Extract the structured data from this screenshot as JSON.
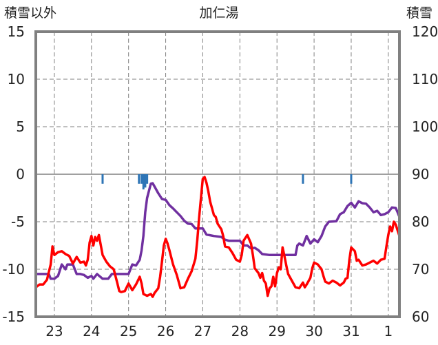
{
  "chart_data": {
    "type": "line",
    "title": "加仁湯",
    "left_axis_label": "積雪以外",
    "right_axis_label": "積雪",
    "x_ticks": [
      "23",
      "24",
      "25",
      "26",
      "27",
      "28",
      "29",
      "30",
      "31",
      "1"
    ],
    "x_range_days": [
      22.5,
      32.3
    ],
    "y_left_ticks": [
      "15",
      "10",
      "5",
      "0",
      "-5",
      "-10",
      "-15"
    ],
    "y_left_range": [
      -15,
      15
    ],
    "y_right_ticks": [
      "120",
      "110",
      "100",
      "90",
      "80",
      "70",
      "60"
    ],
    "y_right_range": [
      60,
      120
    ],
    "grid": true,
    "colors": {
      "temperature": "#ff0000",
      "snow_depth": "#7030a0",
      "precipitation": "#2e75b6",
      "frame": "#808080",
      "grid": "#808080"
    },
    "series": [
      {
        "key": "temperature",
        "axis": "left",
        "points": [
          [
            22.5,
            -11.9
          ],
          [
            22.6,
            -11.6
          ],
          [
            22.7,
            -11.6
          ],
          [
            22.8,
            -11.1
          ],
          [
            22.9,
            -9.5
          ],
          [
            22.95,
            -7.6
          ],
          [
            23.0,
            -8.5
          ],
          [
            23.1,
            -8.2
          ],
          [
            23.2,
            -8.1
          ],
          [
            23.3,
            -8.4
          ],
          [
            23.4,
            -8.6
          ],
          [
            23.5,
            -9.4
          ],
          [
            23.6,
            -8.7
          ],
          [
            23.7,
            -9.3
          ],
          [
            23.8,
            -9.2
          ],
          [
            23.85,
            -9.6
          ],
          [
            23.9,
            -9.0
          ],
          [
            23.95,
            -7.2
          ],
          [
            24.0,
            -6.5
          ],
          [
            24.05,
            -7.5
          ],
          [
            24.1,
            -6.6
          ],
          [
            24.15,
            -7.0
          ],
          [
            24.2,
            -6.4
          ],
          [
            24.3,
            -8.5
          ],
          [
            24.4,
            -9.2
          ],
          [
            24.5,
            -9.7
          ],
          [
            24.6,
            -10.0
          ],
          [
            24.7,
            -11.5
          ],
          [
            24.75,
            -12.3
          ],
          [
            24.8,
            -12.4
          ],
          [
            24.9,
            -12.3
          ],
          [
            25.0,
            -11.5
          ],
          [
            25.1,
            -12.2
          ],
          [
            25.2,
            -11.6
          ],
          [
            25.3,
            -10.8
          ],
          [
            25.35,
            -11.5
          ],
          [
            25.4,
            -12.6
          ],
          [
            25.5,
            -12.8
          ],
          [
            25.6,
            -12.6
          ],
          [
            25.65,
            -12.9
          ],
          [
            25.7,
            -12.5
          ],
          [
            25.8,
            -12.0
          ],
          [
            25.85,
            -10.8
          ],
          [
            25.9,
            -9.2
          ],
          [
            25.95,
            -7.5
          ],
          [
            26.0,
            -6.8
          ],
          [
            26.05,
            -7.3
          ],
          [
            26.1,
            -8.0
          ],
          [
            26.2,
            -9.5
          ],
          [
            26.3,
            -10.6
          ],
          [
            26.4,
            -12.0
          ],
          [
            26.5,
            -11.9
          ],
          [
            26.6,
            -11.0
          ],
          [
            26.7,
            -10.2
          ],
          [
            26.8,
            -8.9
          ],
          [
            26.85,
            -7.0
          ],
          [
            26.9,
            -4.6
          ],
          [
            26.95,
            -2.5
          ],
          [
            27.0,
            -0.5
          ],
          [
            27.05,
            -0.3
          ],
          [
            27.1,
            -0.9
          ],
          [
            27.15,
            -1.8
          ],
          [
            27.2,
            -2.9
          ],
          [
            27.3,
            -4.3
          ],
          [
            27.35,
            -4.5
          ],
          [
            27.4,
            -5.2
          ],
          [
            27.5,
            -5.8
          ],
          [
            27.55,
            -6.5
          ],
          [
            27.6,
            -7.6
          ],
          [
            27.7,
            -7.7
          ],
          [
            27.8,
            -8.3
          ],
          [
            27.9,
            -9.0
          ],
          [
            28.0,
            -9.2
          ],
          [
            28.05,
            -8.5
          ],
          [
            28.1,
            -7.0
          ],
          [
            28.2,
            -6.4
          ],
          [
            28.3,
            -7.3
          ],
          [
            28.35,
            -8.5
          ],
          [
            28.4,
            -9.9
          ],
          [
            28.5,
            -10.4
          ],
          [
            28.55,
            -10.9
          ],
          [
            28.6,
            -10.4
          ],
          [
            28.65,
            -11.2
          ],
          [
            28.7,
            -11.5
          ],
          [
            28.75,
            -12.8
          ],
          [
            28.8,
            -12.0
          ],
          [
            28.85,
            -11.8
          ],
          [
            28.9,
            -10.8
          ],
          [
            28.95,
            -11.8
          ],
          [
            29.0,
            -10.4
          ],
          [
            29.05,
            -9.8
          ],
          [
            29.1,
            -10.0
          ],
          [
            29.15,
            -7.7
          ],
          [
            29.2,
            -8.6
          ],
          [
            29.25,
            -9.6
          ],
          [
            29.3,
            -10.5
          ],
          [
            29.4,
            -11.2
          ],
          [
            29.5,
            -11.9
          ],
          [
            29.6,
            -12.0
          ],
          [
            29.7,
            -11.4
          ],
          [
            29.75,
            -11.9
          ],
          [
            29.8,
            -11.6
          ],
          [
            29.9,
            -10.9
          ],
          [
            29.95,
            -9.9
          ],
          [
            30.0,
            -9.3
          ],
          [
            30.1,
            -9.5
          ],
          [
            30.2,
            -10.0
          ],
          [
            30.25,
            -10.7
          ],
          [
            30.3,
            -11.3
          ],
          [
            30.4,
            -11.5
          ],
          [
            30.5,
            -11.2
          ],
          [
            30.6,
            -11.4
          ],
          [
            30.7,
            -11.7
          ],
          [
            30.8,
            -11.4
          ],
          [
            30.85,
            -11.0
          ],
          [
            30.9,
            -10.9
          ],
          [
            30.95,
            -9.0
          ],
          [
            31.0,
            -7.7
          ],
          [
            31.1,
            -8.1
          ],
          [
            31.15,
            -9.1
          ],
          [
            31.2,
            -9.0
          ],
          [
            31.3,
            -9.6
          ],
          [
            31.4,
            -9.5
          ],
          [
            31.5,
            -9.3
          ],
          [
            31.6,
            -9.1
          ],
          [
            31.7,
            -9.4
          ],
          [
            31.8,
            -9.0
          ],
          [
            31.9,
            -8.9
          ],
          [
            31.95,
            -7.6
          ],
          [
            32.0,
            -6.4
          ],
          [
            32.05,
            -5.5
          ],
          [
            32.1,
            -6.0
          ],
          [
            32.15,
            -5.0
          ],
          [
            32.2,
            -5.3
          ],
          [
            32.25,
            -5.9
          ],
          [
            32.3,
            -6.5
          ]
        ]
      },
      {
        "key": "snow_depth",
        "axis": "right",
        "points": [
          [
            22.5,
            69.0
          ],
          [
            22.85,
            69.0
          ],
          [
            22.9,
            68.0
          ],
          [
            23.0,
            68.0
          ],
          [
            23.1,
            68.6
          ],
          [
            23.2,
            71.0
          ],
          [
            23.3,
            70.0
          ],
          [
            23.35,
            71.0
          ],
          [
            23.5,
            71.0
          ],
          [
            23.6,
            69.0
          ],
          [
            23.7,
            69.0
          ],
          [
            23.8,
            68.8
          ],
          [
            23.9,
            68.2
          ],
          [
            24.0,
            68.6
          ],
          [
            24.05,
            68.0
          ],
          [
            24.15,
            69.0
          ],
          [
            24.3,
            68.0
          ],
          [
            24.45,
            68.0
          ],
          [
            24.55,
            69.0
          ],
          [
            24.9,
            69.0
          ],
          [
            25.0,
            69.0
          ],
          [
            25.05,
            70.0
          ],
          [
            25.1,
            71.0
          ],
          [
            25.2,
            70.8
          ],
          [
            25.3,
            72.0
          ],
          [
            25.35,
            74.0
          ],
          [
            25.4,
            77.0
          ],
          [
            25.45,
            82.0
          ],
          [
            25.5,
            85.0
          ],
          [
            25.6,
            88.0
          ],
          [
            25.65,
            88.1
          ],
          [
            25.7,
            87.4
          ],
          [
            25.8,
            86.0
          ],
          [
            25.9,
            84.8
          ],
          [
            26.0,
            84.6
          ],
          [
            26.1,
            83.5
          ],
          [
            26.2,
            82.8
          ],
          [
            26.3,
            82.0
          ],
          [
            26.4,
            81.2
          ],
          [
            26.5,
            80.2
          ],
          [
            26.6,
            79.6
          ],
          [
            26.7,
            79.5
          ],
          [
            26.8,
            78.6
          ],
          [
            27.0,
            78.6
          ],
          [
            27.1,
            77.3
          ],
          [
            27.3,
            77.0
          ],
          [
            27.5,
            76.8
          ],
          [
            27.6,
            76.2
          ],
          [
            27.7,
            76.0
          ],
          [
            28.0,
            76.0
          ],
          [
            28.1,
            75.0
          ],
          [
            28.2,
            75.0
          ],
          [
            28.3,
            74.4
          ],
          [
            28.4,
            74.5
          ],
          [
            28.5,
            74.0
          ],
          [
            28.6,
            73.2
          ],
          [
            28.8,
            73.0
          ],
          [
            29.4,
            73.0
          ],
          [
            29.5,
            73.0
          ],
          [
            29.55,
            75.0
          ],
          [
            29.6,
            75.4
          ],
          [
            29.7,
            75.0
          ],
          [
            29.8,
            77.0
          ],
          [
            29.9,
            75.4
          ],
          [
            30.0,
            76.3
          ],
          [
            30.05,
            76.0
          ],
          [
            30.1,
            75.7
          ],
          [
            30.2,
            77.0
          ],
          [
            30.3,
            79.0
          ],
          [
            30.4,
            80.0
          ],
          [
            30.6,
            80.1
          ],
          [
            30.7,
            81.6
          ],
          [
            30.8,
            82.0
          ],
          [
            30.9,
            83.3
          ],
          [
            31.0,
            84.0
          ],
          [
            31.1,
            83.0
          ],
          [
            31.2,
            84.3
          ],
          [
            31.3,
            83.9
          ],
          [
            31.4,
            83.8
          ],
          [
            31.5,
            83.0
          ],
          [
            31.6,
            82.0
          ],
          [
            31.7,
            82.3
          ],
          [
            31.8,
            81.4
          ],
          [
            31.9,
            81.6
          ],
          [
            32.0,
            82.0
          ],
          [
            32.1,
            83.0
          ],
          [
            32.2,
            82.9
          ],
          [
            32.25,
            82.0
          ],
          [
            32.3,
            81.0
          ]
        ]
      },
      {
        "key": "precipitation",
        "axis": "left",
        "bars": [
          [
            24.3,
            -1.0
          ],
          [
            25.28,
            -1.0
          ],
          [
            25.35,
            -1.0
          ],
          [
            25.4,
            -1.6
          ],
          [
            25.45,
            -1.4
          ],
          [
            25.5,
            -1.0
          ],
          [
            29.7,
            -1.0
          ],
          [
            31.0,
            -1.0
          ]
        ]
      }
    ]
  }
}
